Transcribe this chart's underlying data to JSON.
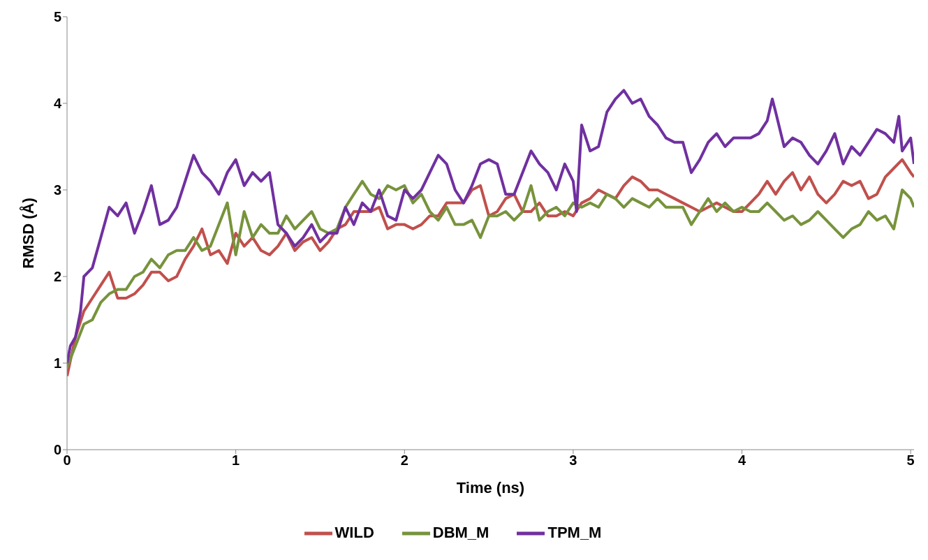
{
  "chart_data": {
    "type": "line",
    "xlabel": "Time (ns)",
    "ylabel": "RMSD (Å)",
    "x": [
      0,
      0.05,
      0.1,
      0.15,
      0.2,
      0.25,
      0.3,
      0.35,
      0.4,
      0.45,
      0.5,
      0.55,
      0.6,
      0.65,
      0.7,
      0.75,
      0.8,
      0.85,
      0.9,
      0.95,
      1,
      1.05,
      1.1,
      1.15,
      1.2,
      1.25,
      1.3,
      1.35,
      1.4,
      1.45,
      1.5,
      1.55,
      1.6,
      1.65,
      1.7,
      1.75,
      1.8,
      1.85,
      1.9,
      1.95,
      2,
      2.05,
      2.1,
      2.15,
      2.2,
      2.25,
      2.3,
      2.35,
      2.4,
      2.45,
      2.5,
      2.55,
      2.6,
      2.65,
      2.7,
      2.75,
      2.8,
      2.85,
      2.9,
      2.95,
      3,
      3.05,
      3.1,
      3.15,
      3.2,
      3.25,
      3.3,
      3.35,
      3.4,
      3.45,
      3.5,
      3.55,
      3.6,
      3.65,
      3.7,
      3.75,
      3.8,
      3.85,
      3.9,
      3.95,
      4,
      4.05,
      4.1,
      4.15,
      4.2,
      4.25,
      4.3,
      4.35,
      4.4,
      4.45,
      4.5,
      4.55,
      4.6,
      4.65,
      4.7,
      4.75,
      4.8,
      4.85,
      4.9,
      4.95,
      5,
      5.02
    ],
    "series": [
      {
        "name": "WILD",
        "color": "#c0504d",
        "values": [
          0.85,
          1.3,
          1.6,
          1.75,
          1.9,
          2.05,
          1.75,
          1.75,
          1.8,
          1.9,
          2.05,
          2.05,
          1.95,
          2.0,
          2.2,
          2.35,
          2.55,
          2.25,
          2.3,
          2.15,
          2.5,
          2.35,
          2.45,
          2.3,
          2.25,
          2.35,
          2.5,
          2.3,
          2.4,
          2.45,
          2.3,
          2.4,
          2.55,
          2.6,
          2.75,
          2.75,
          2.75,
          2.8,
          2.55,
          2.6,
          2.6,
          2.55,
          2.6,
          2.7,
          2.7,
          2.85,
          2.85,
          2.85,
          3.0,
          3.05,
          2.7,
          2.75,
          2.9,
          2.95,
          2.75,
          2.75,
          2.85,
          2.7,
          2.7,
          2.75,
          2.7,
          2.85,
          2.9,
          3.0,
          2.95,
          2.9,
          3.05,
          3.15,
          3.1,
          3.0,
          3.0,
          2.95,
          2.9,
          2.85,
          2.8,
          2.75,
          2.8,
          2.85,
          2.8,
          2.75,
          2.75,
          2.85,
          2.95,
          3.1,
          2.95,
          3.1,
          3.2,
          3.0,
          3.15,
          2.95,
          2.85,
          2.95,
          3.1,
          3.05,
          3.1,
          2.9,
          2.95,
          3.15,
          3.25,
          3.35,
          3.2,
          3.15
        ]
      },
      {
        "name": "DBM_M",
        "color": "#77933c",
        "values": [
          0.95,
          1.2,
          1.45,
          1.5,
          1.7,
          1.8,
          1.85,
          1.85,
          2.0,
          2.05,
          2.2,
          2.1,
          2.25,
          2.3,
          2.3,
          2.45,
          2.3,
          2.35,
          2.6,
          2.85,
          2.25,
          2.75,
          2.45,
          2.6,
          2.5,
          2.5,
          2.7,
          2.55,
          2.65,
          2.75,
          2.55,
          2.5,
          2.55,
          2.8,
          2.95,
          3.1,
          2.95,
          2.9,
          3.05,
          3.0,
          3.05,
          2.85,
          2.95,
          2.75,
          2.65,
          2.8,
          2.6,
          2.6,
          2.65,
          2.45,
          2.7,
          2.7,
          2.75,
          2.65,
          2.75,
          3.05,
          2.65,
          2.75,
          2.8,
          2.7,
          2.85,
          2.8,
          2.85,
          2.8,
          2.95,
          2.9,
          2.8,
          2.9,
          2.85,
          2.8,
          2.9,
          2.8,
          2.8,
          2.8,
          2.6,
          2.75,
          2.9,
          2.75,
          2.85,
          2.75,
          2.8,
          2.75,
          2.75,
          2.85,
          2.75,
          2.65,
          2.7,
          2.6,
          2.65,
          2.75,
          2.65,
          2.55,
          2.45,
          2.55,
          2.6,
          2.75,
          2.65,
          2.7,
          2.55,
          3.0,
          2.9,
          2.8
        ]
      },
      {
        "name": "TPM_M",
        "color": "#7030a0",
        "x": [
          0,
          0.02,
          0.05,
          0.08,
          0.1,
          0.15,
          0.2,
          0.25,
          0.3,
          0.35,
          0.4,
          0.45,
          0.5,
          0.55,
          0.6,
          0.65,
          0.7,
          0.75,
          0.8,
          0.85,
          0.9,
          0.95,
          1,
          1.05,
          1.1,
          1.15,
          1.2,
          1.25,
          1.3,
          1.35,
          1.4,
          1.45,
          1.5,
          1.55,
          1.6,
          1.65,
          1.7,
          1.75,
          1.8,
          1.85,
          1.9,
          1.95,
          2,
          2.05,
          2.1,
          2.15,
          2.2,
          2.25,
          2.3,
          2.35,
          2.4,
          2.45,
          2.5,
          2.55,
          2.6,
          2.65,
          2.7,
          2.75,
          2.8,
          2.85,
          2.9,
          2.95,
          3,
          3.02,
          3.05,
          3.1,
          3.15,
          3.2,
          3.25,
          3.3,
          3.35,
          3.4,
          3.45,
          3.5,
          3.55,
          3.6,
          3.65,
          3.7,
          3.75,
          3.8,
          3.85,
          3.9,
          3.95,
          4,
          4.05,
          4.1,
          4.15,
          4.18,
          4.2,
          4.25,
          4.3,
          4.35,
          4.4,
          4.45,
          4.5,
          4.55,
          4.6,
          4.65,
          4.7,
          4.75,
          4.8,
          4.85,
          4.9,
          4.93,
          4.95,
          5,
          5.02
        ],
        "values": [
          1.0,
          1.2,
          1.3,
          1.6,
          2.0,
          2.1,
          2.45,
          2.8,
          2.7,
          2.85,
          2.5,
          2.75,
          3.05,
          2.6,
          2.65,
          2.8,
          3.1,
          3.4,
          3.2,
          3.1,
          2.95,
          3.2,
          3.35,
          3.05,
          3.2,
          3.1,
          3.2,
          2.6,
          2.5,
          2.35,
          2.45,
          2.6,
          2.4,
          2.5,
          2.5,
          2.8,
          2.6,
          2.85,
          2.75,
          3.0,
          2.7,
          2.65,
          3.0,
          2.9,
          3.0,
          3.2,
          3.4,
          3.3,
          3.0,
          2.85,
          3.05,
          3.3,
          3.35,
          3.3,
          2.95,
          2.95,
          3.2,
          3.45,
          3.3,
          3.2,
          3.0,
          3.3,
          3.1,
          2.75,
          3.75,
          3.45,
          3.5,
          3.9,
          4.05,
          4.15,
          4.0,
          4.05,
          3.85,
          3.75,
          3.6,
          3.55,
          3.55,
          3.2,
          3.35,
          3.55,
          3.65,
          3.5,
          3.6,
          3.6,
          3.6,
          3.65,
          3.8,
          4.05,
          3.9,
          3.5,
          3.6,
          3.55,
          3.4,
          3.3,
          3.45,
          3.65,
          3.3,
          3.5,
          3.4,
          3.55,
          3.7,
          3.65,
          3.55,
          3.85,
          3.45,
          3.6,
          3.3
        ]
      }
    ],
    "xlim": [
      0,
      5.02
    ],
    "xticks": [
      0,
      1,
      2,
      3,
      4,
      5
    ],
    "ylim": [
      0,
      5
    ],
    "yticks": [
      0,
      1,
      2,
      3,
      4,
      5
    ],
    "grid": false,
    "legend": "bottom",
    "marker": "none",
    "line_style": "solid"
  }
}
